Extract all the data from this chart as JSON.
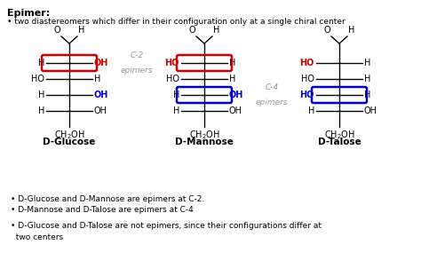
{
  "title": "Epimer:",
  "subtitle": "• two diastereomers which differ in their configuration only at a single chiral center",
  "bg_color": "#ffffff",
  "text_color": "#000000",
  "red_color": "#cc0000",
  "blue_color": "#0000cc",
  "gray_color": "#999999",
  "bottom_notes_line1": "• D-Glucose and D-Mannose are epimers at C-2.",
  "bottom_notes_line2": "• D-Mannose and D-Talose are epimers at C-4",
  "bottom_notes_line3": "• D-Glucose and D-Talose are not epimers, since their configurations differ at\n  two centers",
  "c2_label": "C-2\nepimers",
  "c4_label": "C-4\nepimers",
  "glucose_name": "D-Glucose",
  "mannose_name": "D-Mannose",
  "talose_name": "D-Talose"
}
